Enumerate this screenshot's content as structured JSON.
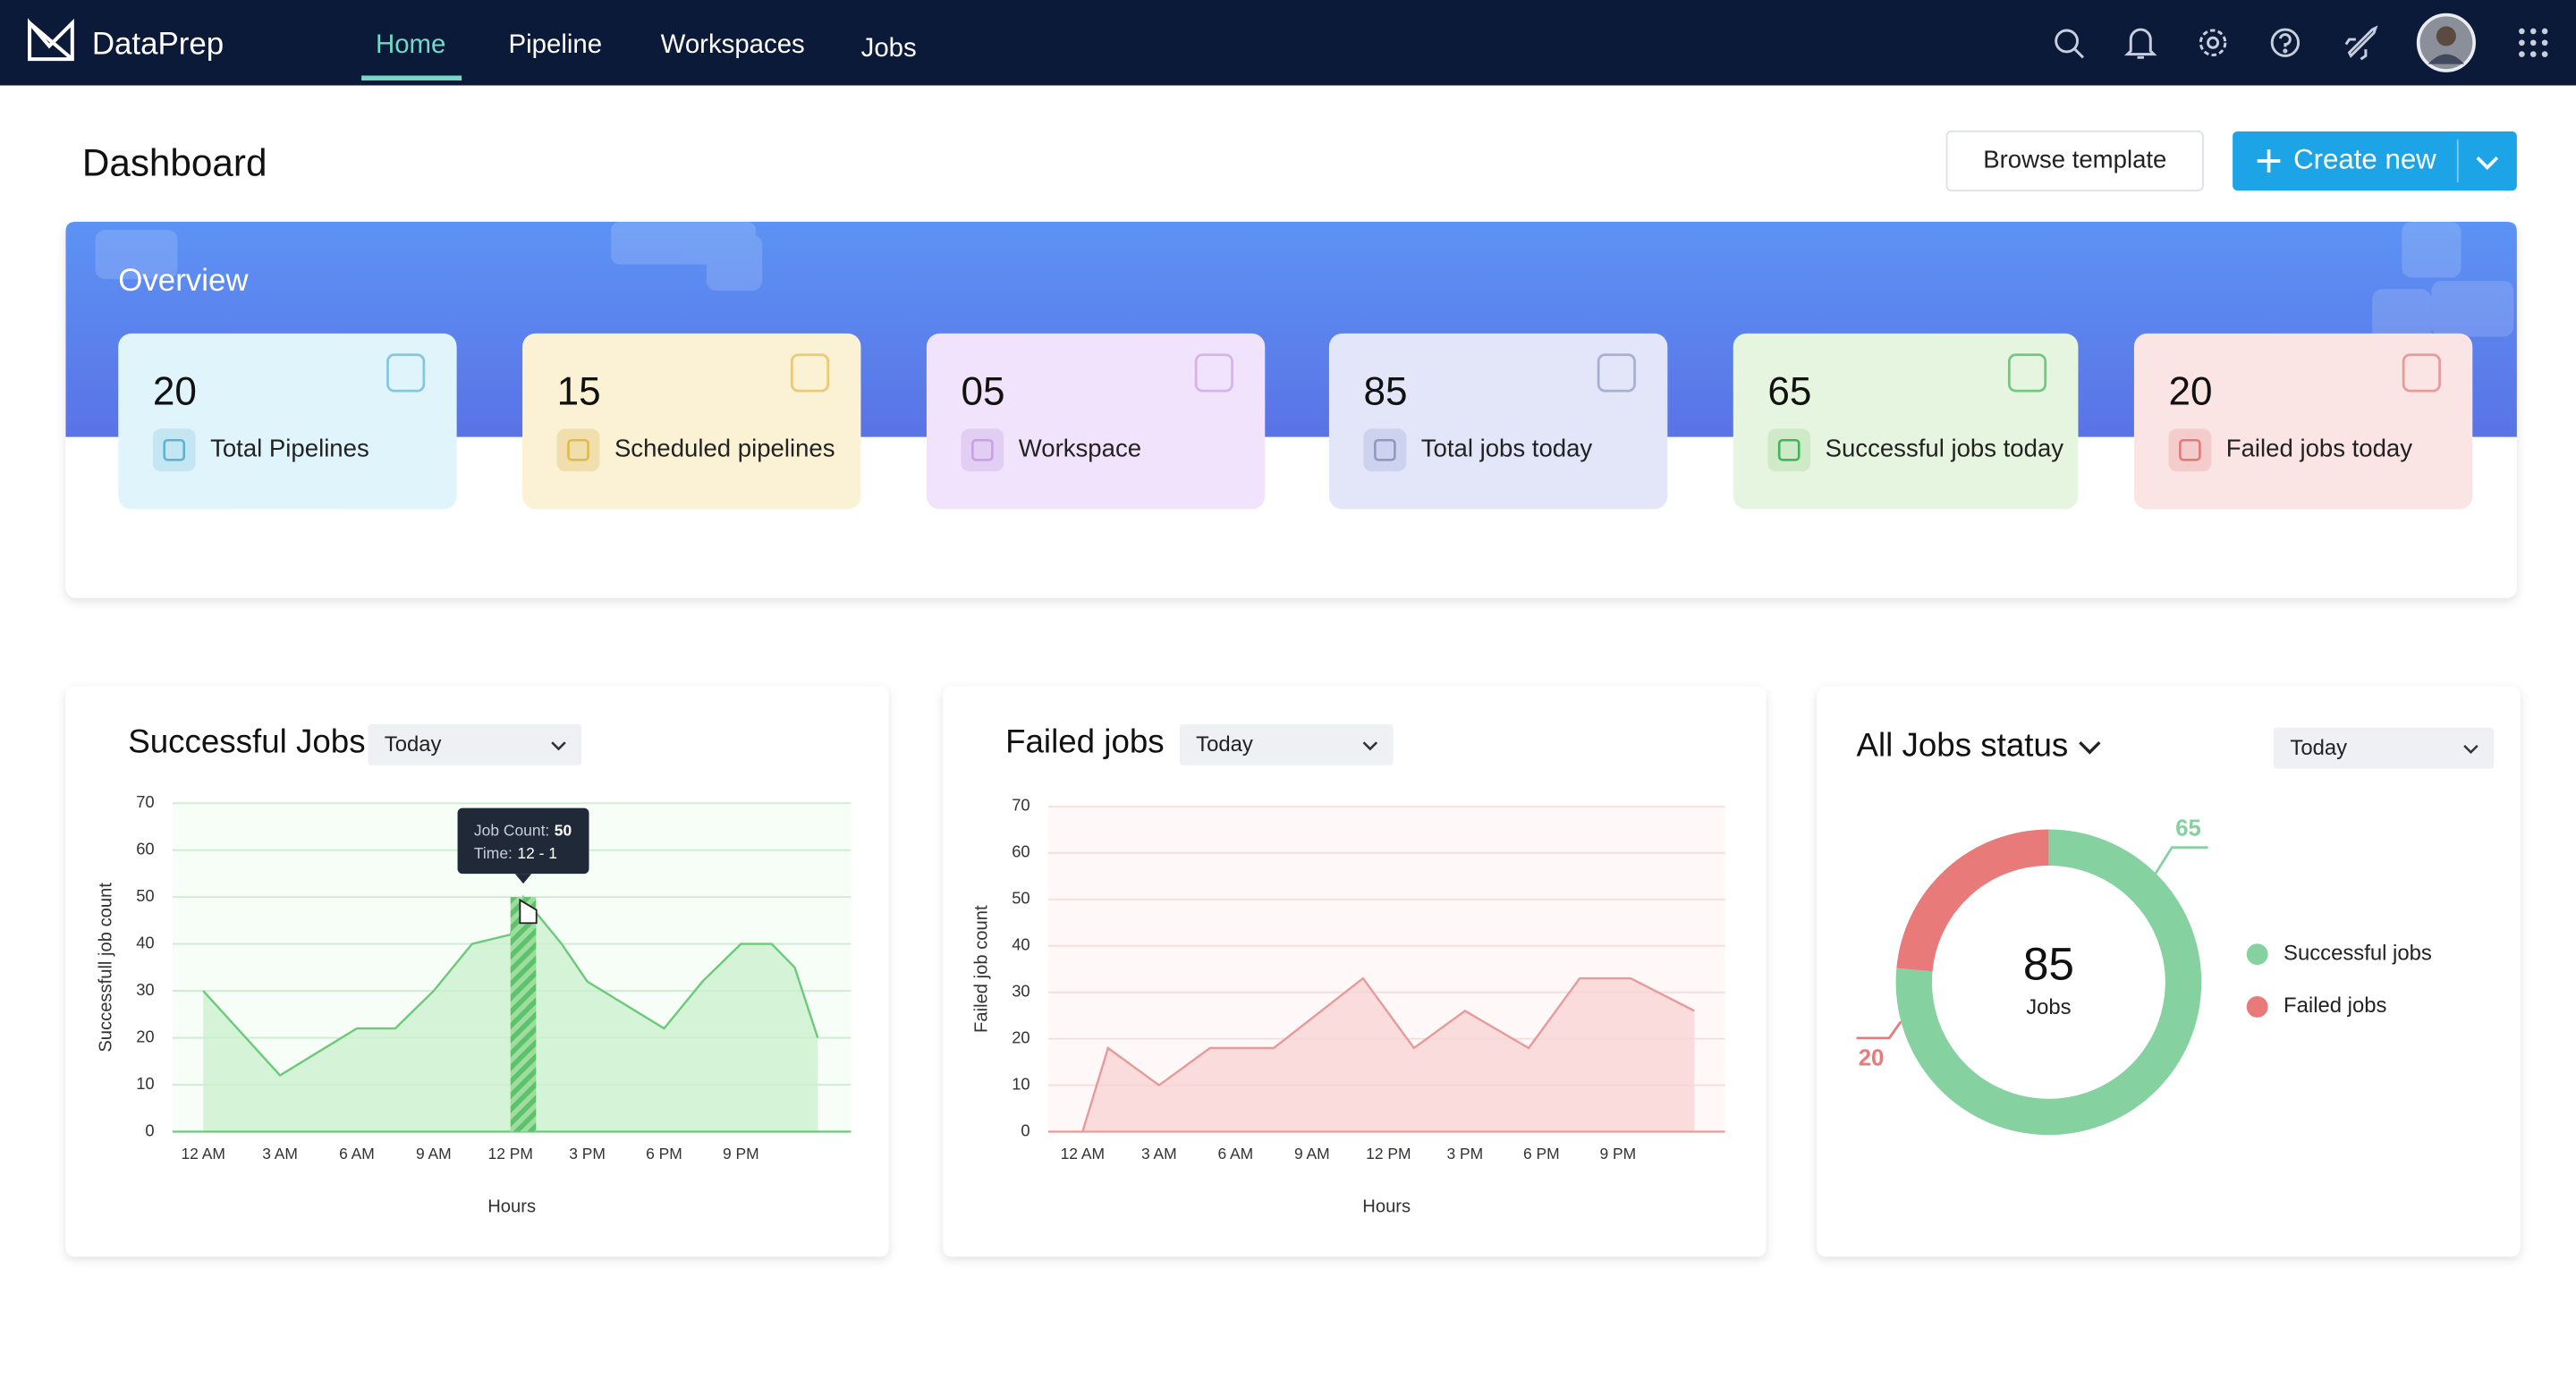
{
  "nav": {
    "brand": "DataPrep",
    "items": [
      "Home",
      "Pipeline",
      "Workspaces",
      "Jobs"
    ]
  },
  "header": {
    "title": "Dashboard",
    "browse": "Browse template",
    "create": "Create new"
  },
  "overview": {
    "title": "Overview",
    "cards": [
      {
        "value": 20,
        "label": "Total Pipelines"
      },
      {
        "value": 15,
        "label": "Scheduled pipelines"
      },
      {
        "value": "05",
        "label": "Workspace"
      },
      {
        "value": 85,
        "label": "Total jobs today"
      },
      {
        "value": 65,
        "label": "Successful jobs today"
      },
      {
        "value": 20,
        "label": "Failed jobs today"
      }
    ]
  },
  "chart_data": [
    {
      "type": "area",
      "title": "Successful Jobs",
      "filter": "Today",
      "x_label": "Hours",
      "y_label": "Successfull job count",
      "x": [
        0,
        3,
        6,
        7.5,
        9,
        10.5,
        12,
        12.5,
        14,
        15,
        18,
        19.5,
        21,
        22.2,
        23.1,
        24
      ],
      "values": [
        30,
        12,
        22,
        22,
        30,
        40,
        42,
        50,
        40,
        32,
        22,
        32,
        40,
        40,
        35,
        20
      ],
      "color": "#6cc97a",
      "fill": "#c9efcb",
      "xlim": [
        -1.2,
        25.3
      ],
      "xticks": [
        {
          "value": 0,
          "label": "12 AM"
        },
        {
          "value": 3,
          "label": "3 AM"
        },
        {
          "value": 6,
          "label": "6 AM"
        },
        {
          "value": 9,
          "label": "9 AM"
        },
        {
          "value": 12,
          "label": "12 PM"
        },
        {
          "value": 15,
          "label": "3 PM"
        },
        {
          "value": 18,
          "label": "6 PM"
        },
        {
          "value": 21,
          "label": "9 PM"
        }
      ],
      "ylim": [
        0,
        70
      ],
      "yticks": [
        0,
        10,
        20,
        30,
        40,
        50,
        60,
        70
      ],
      "tooltip": {
        "count_label": "Job Count:",
        "count": 50,
        "time_label": "Time:",
        "time": "12 - 1"
      }
    },
    {
      "type": "area",
      "title": "Failed jobs",
      "filter": "Today",
      "x_label": "Hours",
      "y_label": "Failed job count",
      "x": [
        0,
        1,
        3,
        5,
        7.5,
        11,
        13,
        15,
        17.5,
        19.5,
        21.5,
        24
      ],
      "values": [
        0,
        18,
        10,
        18,
        18,
        33,
        18,
        26,
        18,
        33,
        33,
        26
      ],
      "color": "#e79a9a",
      "fill": "#f8d3d3",
      "xlim": [
        -1.35,
        25.2
      ],
      "xticks": [
        {
          "value": 0,
          "label": "12 AM"
        },
        {
          "value": 3,
          "label": "3 AM"
        },
        {
          "value": 6,
          "label": "6 AM"
        },
        {
          "value": 9,
          "label": "9 AM"
        },
        {
          "value": 12,
          "label": "12 PM"
        },
        {
          "value": 15,
          "label": "3 PM"
        },
        {
          "value": 18,
          "label": "6 PM"
        },
        {
          "value": 21,
          "label": "9 PM"
        }
      ],
      "ylim": [
        0,
        70
      ],
      "yticks": [
        0,
        10,
        20,
        30,
        40,
        50,
        60,
        70
      ]
    },
    {
      "type": "donut",
      "title": "All Jobs status",
      "filter": "Today",
      "center_value": 85,
      "center_label": "Jobs",
      "categories": [
        "Successful jobs",
        "Failed jobs"
      ],
      "values": [
        65,
        20
      ],
      "colors": [
        "#85d1a0",
        "#e87a7a"
      ]
    }
  ]
}
